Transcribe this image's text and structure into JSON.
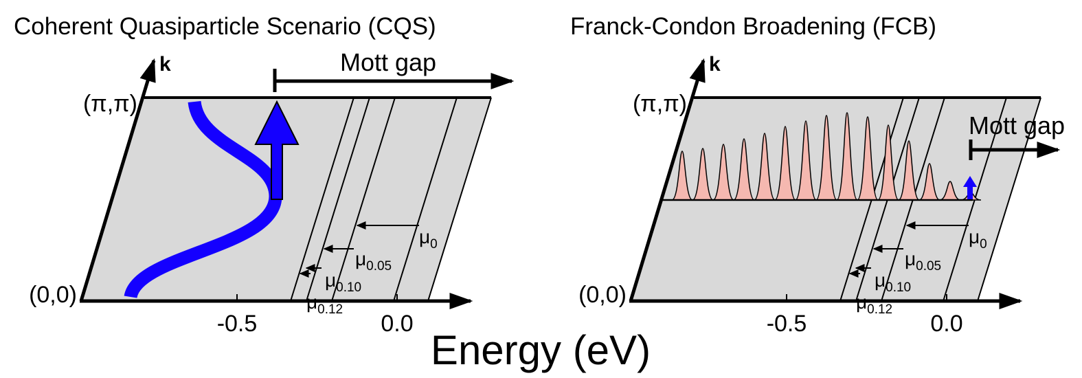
{
  "panels": [
    {
      "title": "Coherent Quasiparticle Scenario (CQS)",
      "axis_k": "k",
      "corner_top": "(π,π)",
      "corner_bottom": "(0,0)",
      "ticks": [
        "-0.5",
        "0.0"
      ],
      "mott_gap": "Mott gap",
      "mu_labels": [
        {
          "symbol": "μ",
          "sub": "0"
        },
        {
          "symbol": "μ",
          "sub": "0.05"
        },
        {
          "symbol": "μ",
          "sub": "0.10"
        },
        {
          "symbol": "μ",
          "sub": "0.12"
        }
      ]
    },
    {
      "title": "Franck-Condon Broadening (FCB)",
      "axis_k": "k",
      "corner_top": "(π,π)",
      "corner_bottom": "(0,0)",
      "ticks": [
        "-0.5",
        "0.0"
      ],
      "mott_gap": "Mott gap",
      "mu_labels": [
        {
          "symbol": "μ",
          "sub": "0"
        },
        {
          "symbol": "μ",
          "sub": "0.05"
        },
        {
          "symbol": "μ",
          "sub": "0.10"
        },
        {
          "symbol": "μ",
          "sub": "0.12"
        }
      ]
    }
  ],
  "x_axis_title": "Energy (eV)"
}
